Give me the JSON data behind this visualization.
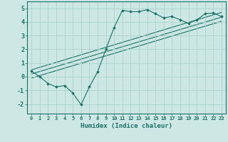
{
  "xlabel": "Humidex (Indice chaleur)",
  "background_color": "#cde8e4",
  "grid_color": "#aad4cc",
  "line_color": "#1a7068",
  "xlim": [
    -0.5,
    23.5
  ],
  "ylim": [
    -2.7,
    5.5
  ],
  "xticks": [
    0,
    1,
    2,
    3,
    4,
    5,
    6,
    7,
    8,
    9,
    10,
    11,
    12,
    13,
    14,
    15,
    16,
    17,
    18,
    19,
    20,
    21,
    22,
    23
  ],
  "yticks": [
    -2,
    -1,
    0,
    1,
    2,
    3,
    4,
    5
  ],
  "line1_x": [
    0,
    1,
    2,
    3,
    4,
    5,
    6,
    7,
    8,
    9,
    10,
    11,
    12,
    13,
    14,
    15,
    16,
    17,
    18,
    19,
    20,
    21,
    22,
    23
  ],
  "line1_y": [
    0.4,
    0.0,
    -0.5,
    -0.75,
    -0.65,
    -1.2,
    -2.05,
    -0.75,
    0.35,
    2.0,
    3.6,
    4.85,
    4.75,
    4.75,
    4.9,
    4.6,
    4.3,
    4.4,
    4.15,
    3.9,
    4.15,
    4.6,
    4.65,
    4.4
  ],
  "line2_x": [
    0,
    23
  ],
  "line2_y": [
    0.5,
    4.7
  ],
  "line3_x": [
    0,
    23
  ],
  "line3_y": [
    0.2,
    4.35
  ],
  "line4_x": [
    0,
    23
  ],
  "line4_y": [
    -0.1,
    4.05
  ]
}
